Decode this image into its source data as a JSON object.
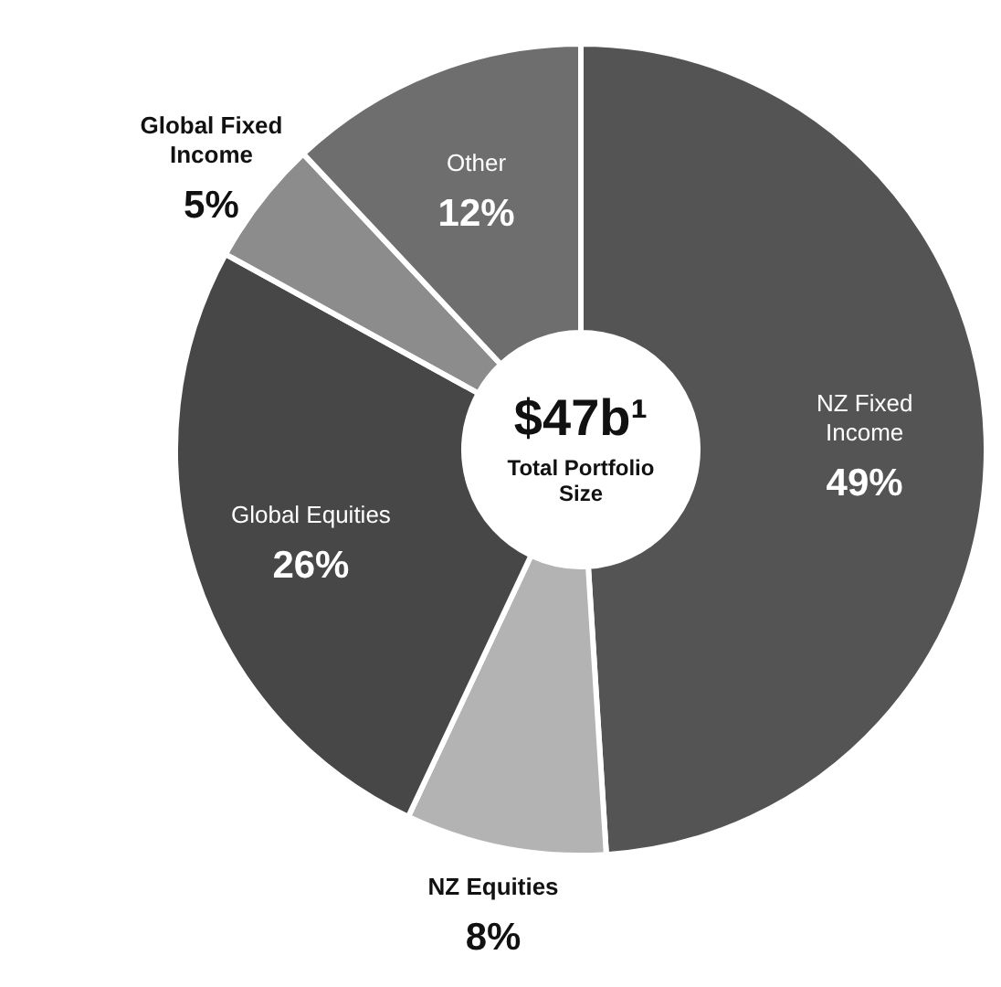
{
  "chart_data": {
    "type": "donut",
    "categories": [
      "NZ Fixed Income",
      "NZ Equities",
      "Global Equities",
      "Global Fixed Income",
      "Other"
    ],
    "values": [
      49,
      8,
      26,
      5,
      12
    ],
    "value_labels": [
      "49%",
      "8%",
      "26%",
      "5%",
      "12%"
    ],
    "colors": [
      "#545454",
      "#b3b3b3",
      "#474747",
      "#8c8c8c",
      "#6e6e6e"
    ],
    "annotations": [
      "$47b¹",
      "Total Portfolio Size"
    ]
  }
}
